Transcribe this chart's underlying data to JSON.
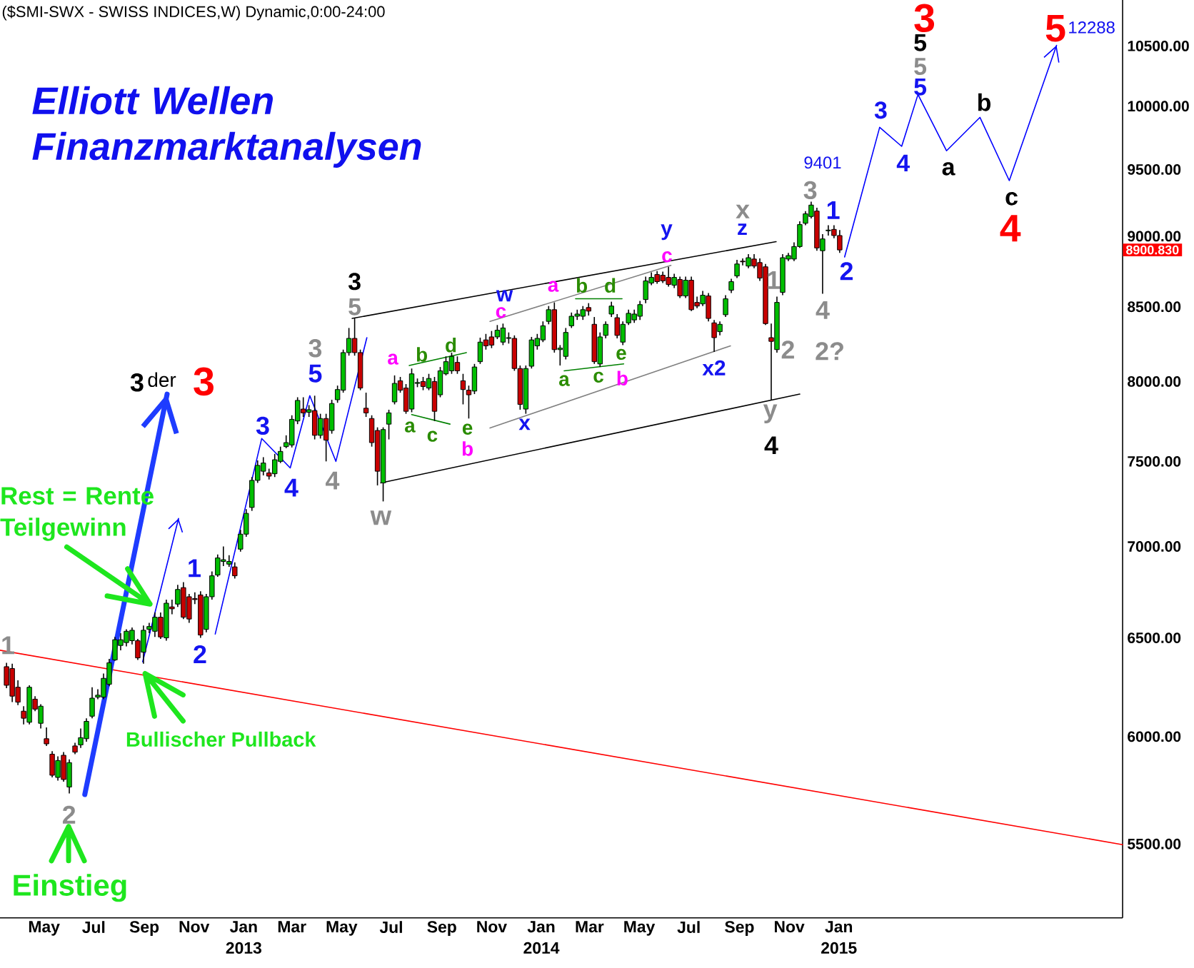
{
  "chart_data": {
    "type": "candlestick",
    "title": "Elliott Wellen Finanzmarktanalysen",
    "subtitle": "($SMI-SWX - SWISS INDICES,W) Dynamic,0:00-24:00",
    "x": [
      "2012-03-16",
      "2012-03-23",
      "2012-03-30",
      "2012-04-06",
      "2012-04-13",
      "2012-04-20",
      "2012-04-27",
      "2012-05-04",
      "2012-05-11",
      "2012-05-18",
      "2012-05-25",
      "2012-06-01",
      "2012-06-08",
      "2012-06-15",
      "2012-06-22",
      "2012-06-29",
      "2012-07-06",
      "2012-07-13",
      "2012-07-20",
      "2012-07-27",
      "2012-08-03",
      "2012-08-10",
      "2012-08-17",
      "2012-08-24",
      "2012-08-31",
      "2012-09-07",
      "2012-09-14",
      "2012-09-21",
      "2012-09-28",
      "2012-10-05",
      "2012-10-12",
      "2012-10-19",
      "2012-10-26",
      "2012-11-02",
      "2012-11-09",
      "2012-11-16",
      "2012-11-23",
      "2012-11-30",
      "2012-12-07",
      "2012-12-14",
      "2012-12-21",
      "2012-12-28",
      "2013-01-04",
      "2013-01-11",
      "2013-01-18",
      "2013-01-25",
      "2013-02-01",
      "2013-02-08",
      "2013-02-15",
      "2013-02-22",
      "2013-03-01",
      "2013-03-08",
      "2013-03-15",
      "2013-03-22",
      "2013-03-29",
      "2013-04-05",
      "2013-04-12",
      "2013-04-19",
      "2013-04-26",
      "2013-05-03",
      "2013-05-10",
      "2013-05-17",
      "2013-05-24",
      "2013-05-31",
      "2013-06-07",
      "2013-06-14",
      "2013-06-21",
      "2013-06-28",
      "2013-07-05",
      "2013-07-12",
      "2013-07-19",
      "2013-07-26",
      "2013-08-02",
      "2013-08-09",
      "2013-08-16",
      "2013-08-23",
      "2013-08-30",
      "2013-09-06",
      "2013-09-13",
      "2013-09-20",
      "2013-09-27",
      "2013-10-04",
      "2013-10-11",
      "2013-10-18",
      "2013-10-25",
      "2013-11-01",
      "2013-11-08",
      "2013-11-15",
      "2013-11-22",
      "2013-11-29",
      "2013-12-06",
      "2013-12-13",
      "2013-12-20",
      "2013-12-27",
      "2014-01-03",
      "2014-01-10",
      "2014-01-17",
      "2014-01-24",
      "2014-01-31",
      "2014-02-07",
      "2014-02-14",
      "2014-02-21",
      "2014-02-28",
      "2014-03-07",
      "2014-03-14",
      "2014-03-21",
      "2014-03-28",
      "2014-04-04",
      "2014-04-11",
      "2014-04-18",
      "2014-04-25",
      "2014-05-02",
      "2014-05-09",
      "2014-05-16",
      "2014-05-23",
      "2014-05-30",
      "2014-06-06",
      "2014-06-13",
      "2014-06-20",
      "2014-06-27",
      "2014-07-04",
      "2014-07-11",
      "2014-07-18",
      "2014-07-25",
      "2014-08-01",
      "2014-08-08",
      "2014-08-15",
      "2014-08-22",
      "2014-08-29",
      "2014-09-05",
      "2014-09-12",
      "2014-09-19",
      "2014-09-26",
      "2014-10-03",
      "2014-10-10",
      "2014-10-17",
      "2014-10-24",
      "2014-10-31",
      "2014-11-07",
      "2014-11-14",
      "2014-11-21",
      "2014-11-28",
      "2014-12-05",
      "2014-12-12",
      "2014-12-19",
      "2014-12-26",
      "2015-01-02"
    ],
    "ohlc": [
      [
        6350,
        6370,
        6240,
        6255
      ],
      [
        6340,
        6365,
        6170,
        6200
      ],
      [
        6245,
        6280,
        6155,
        6170
      ],
      [
        6125,
        6150,
        6060,
        6090
      ],
      [
        6070,
        6255,
        6060,
        6245
      ],
      [
        6185,
        6200,
        6125,
        6135
      ],
      [
        6065,
        6160,
        6040,
        6150
      ],
      [
        5990,
        6045,
        5955,
        5965
      ],
      [
        5915,
        5930,
        5805,
        5815
      ],
      [
        5805,
        5905,
        5790,
        5885
      ],
      [
        5910,
        5925,
        5785,
        5795
      ],
      [
        5760,
        5890,
        5730,
        5875
      ],
      [
        5955,
        5970,
        5915,
        5925
      ],
      [
        5960,
        6040,
        5945,
        5995
      ],
      [
        5990,
        6090,
        5975,
        6075
      ],
      [
        6100,
        6245,
        6090,
        6190
      ],
      [
        6195,
        6235,
        6185,
        6205
      ],
      [
        6195,
        6315,
        6185,
        6290
      ],
      [
        6260,
        6390,
        6250,
        6370
      ],
      [
        6385,
        6505,
        6380,
        6490
      ],
      [
        6460,
        6525,
        6435,
        6490
      ],
      [
        6475,
        6545,
        6455,
        6535
      ],
      [
        6485,
        6555,
        6465,
        6540
      ],
      [
        6485,
        6495,
        6385,
        6395
      ],
      [
        6425,
        6565,
        6365,
        6540
      ],
      [
        6545,
        6580,
        6525,
        6560
      ],
      [
        6535,
        6635,
        6505,
        6610
      ],
      [
        6610,
        6635,
        6495,
        6505
      ],
      [
        6500,
        6705,
        6485,
        6685
      ],
      [
        6665,
        6705,
        6625,
        6655
      ],
      [
        6680,
        6785,
        6665,
        6760
      ],
      [
        6770,
        6800,
        6600,
        6610
      ],
      [
        6720,
        6735,
        6580,
        6600
      ],
      [
        6710,
        6745,
        6680,
        6705
      ],
      [
        6730,
        6750,
        6500,
        6515
      ],
      [
        6545,
        6735,
        6530,
        6720
      ],
      [
        6720,
        6860,
        6705,
        6835
      ],
      [
        6840,
        6955,
        6830,
        6935
      ],
      [
        6915,
        7000,
        6890,
        6925
      ],
      [
        6900,
        6950,
        6885,
        6915
      ],
      [
        6885,
        6910,
        6820,
        6835
      ],
      [
        6985,
        7095,
        6970,
        7070
      ],
      [
        7070,
        7215,
        7055,
        7190
      ],
      [
        7225,
        7405,
        7205,
        7385
      ],
      [
        7385,
        7505,
        7370,
        7475
      ],
      [
        7440,
        7525,
        7415,
        7490
      ],
      [
        7430,
        7455,
        7390,
        7410
      ],
      [
        7425,
        7545,
        7405,
        7510
      ],
      [
        7500,
        7590,
        7490,
        7560
      ],
      [
        7590,
        7660,
        7580,
        7615
      ],
      [
        7600,
        7785,
        7585,
        7760
      ],
      [
        7750,
        7900,
        7730,
        7880
      ],
      [
        7825,
        7900,
        7775,
        7800
      ],
      [
        7805,
        7850,
        7775,
        7820
      ],
      [
        7815,
        7910,
        7635,
        7660
      ],
      [
        7660,
        7795,
        7640,
        7765
      ],
      [
        7765,
        7795,
        7500,
        7630
      ],
      [
        7690,
        7885,
        7670,
        7860
      ],
      [
        7885,
        7975,
        7865,
        7950
      ],
      [
        7945,
        8210,
        7930,
        8190
      ],
      [
        8190,
        8355,
        8170,
        8285
      ],
      [
        8285,
        8420,
        8170,
        8190
      ],
      [
        8190,
        8210,
        7945,
        7960
      ],
      [
        7830,
        7930,
        7775,
        7800
      ],
      [
        7765,
        7785,
        7590,
        7615
      ],
      [
        7690,
        7710,
        7355,
        7440
      ],
      [
        7370,
        7710,
        7260,
        7695
      ],
      [
        7730,
        7820,
        7635,
        7800
      ],
      [
        7870,
        8040,
        7855,
        7990
      ],
      [
        8005,
        8030,
        7930,
        7945
      ],
      [
        7960,
        7985,
        7795,
        7810
      ],
      [
        7825,
        8085,
        7805,
        8050
      ],
      [
        7990,
        8020,
        7965,
        7995
      ],
      [
        8000,
        8030,
        7945,
        7970
      ],
      [
        7960,
        8050,
        7945,
        8020
      ],
      [
        8000,
        8030,
        7750,
        7810
      ],
      [
        7915,
        8095,
        7900,
        8070
      ],
      [
        8050,
        8165,
        8040,
        8130
      ],
      [
        8070,
        8190,
        8050,
        8165
      ],
      [
        8125,
        8165,
        8050,
        8070
      ],
      [
        8005,
        8050,
        7855,
        7950
      ],
      [
        7945,
        7975,
        7765,
        7915
      ],
      [
        7940,
        8115,
        7920,
        8095
      ],
      [
        8130,
        8290,
        8115,
        8260
      ],
      [
        8275,
        8315,
        8210,
        8235
      ],
      [
        8295,
        8335,
        8220,
        8240
      ],
      [
        8295,
        8375,
        8280,
        8340
      ],
      [
        8260,
        8385,
        8240,
        8355
      ],
      [
        8285,
        8325,
        8250,
        8290
      ],
      [
        8285,
        8305,
        8070,
        8085
      ],
      [
        8085,
        8105,
        7820,
        7855
      ],
      [
        7825,
        8105,
        7795,
        8085
      ],
      [
        8100,
        8295,
        8085,
        8275
      ],
      [
        8235,
        8315,
        8210,
        8285
      ],
      [
        8275,
        8400,
        8260,
        8370
      ],
      [
        8400,
        8505,
        8380,
        8480
      ],
      [
        8480,
        8530,
        8190,
        8210
      ],
      [
        8210,
        8240,
        8105,
        8220
      ],
      [
        8165,
        8355,
        8145,
        8325
      ],
      [
        8370,
        8460,
        8355,
        8435
      ],
      [
        8435,
        8480,
        8410,
        8450
      ],
      [
        8435,
        8505,
        8410,
        8480
      ],
      [
        8495,
        8525,
        8440,
        8470
      ],
      [
        8380,
        8430,
        8115,
        8130
      ],
      [
        8115,
        8325,
        8095,
        8295
      ],
      [
        8305,
        8400,
        8285,
        8380
      ],
      [
        8450,
        8535,
        8430,
        8505
      ],
      [
        8425,
        8450,
        8285,
        8305
      ],
      [
        8260,
        8400,
        8240,
        8380
      ],
      [
        8390,
        8480,
        8375,
        8455
      ],
      [
        8410,
        8480,
        8390,
        8450
      ],
      [
        8435,
        8540,
        8410,
        8515
      ],
      [
        8550,
        8710,
        8525,
        8680
      ],
      [
        8665,
        8740,
        8650,
        8705
      ],
      [
        8725,
        8750,
        8660,
        8675
      ],
      [
        8720,
        8745,
        8665,
        8680
      ],
      [
        8705,
        8780,
        8640,
        8655
      ],
      [
        8650,
        8730,
        8630,
        8705
      ],
      [
        8690,
        8710,
        8560,
        8575
      ],
      [
        8575,
        8710,
        8560,
        8685
      ],
      [
        8685,
        8710,
        8470,
        8480
      ],
      [
        8530,
        8570,
        8490,
        8505
      ],
      [
        8520,
        8610,
        8505,
        8580
      ],
      [
        8575,
        8595,
        8400,
        8420
      ],
      [
        8390,
        8410,
        8195,
        8290
      ],
      [
        8330,
        8400,
        8305,
        8380
      ],
      [
        8445,
        8580,
        8430,
        8555
      ],
      [
        8615,
        8695,
        8595,
        8675
      ],
      [
        8715,
        8830,
        8700,
        8800
      ],
      [
        8820,
        8840,
        8790,
        8815
      ],
      [
        8785,
        8870,
        8770,
        8845
      ],
      [
        8835,
        8870,
        8770,
        8785
      ],
      [
        8810,
        8840,
        8680,
        8700
      ],
      [
        8780,
        8800,
        8375,
        8385
      ],
      [
        8290,
        8385,
        7885,
        8265
      ],
      [
        8210,
        8570,
        8190,
        8530
      ],
      [
        8600,
        8870,
        8580,
        8845
      ],
      [
        8835,
        8880,
        8820,
        8860
      ],
      [
        8835,
        8955,
        8820,
        8925
      ],
      [
        8925,
        9110,
        8915,
        9085
      ],
      [
        9095,
        9185,
        9080,
        9165
      ],
      [
        9145,
        9255,
        9130,
        9230
      ],
      [
        9185,
        9210,
        8895,
        8915
      ],
      [
        8895,
        9015,
        8590,
        8980
      ],
      [
        9040,
        9080,
        9005,
        9045
      ],
      [
        9050,
        9080,
        8985,
        9005
      ],
      [
        9005,
        9045,
        8880,
        8900.83
      ]
    ],
    "series": [
      {
        "type": "line",
        "color": "#ff0000",
        "x": [
          "2012-03-08",
          "2015-12-15"
        ],
        "values": [
          6435,
          5497
        ]
      },
      {
        "type": "line",
        "color": "#000000",
        "x": [
          "2013-05-14",
          "2014-10-16"
        ],
        "values": [
          8420,
          8960
        ]
      },
      {
        "type": "line",
        "color": "#000000",
        "x": [
          "2013-06-18",
          "2014-11-14"
        ],
        "values": [
          7370,
          7920
        ]
      },
      {
        "type": "line",
        "color": "#808080",
        "x": [
          "2013-10-30",
          "2014-06-09"
        ],
        "values": [
          8400,
          8790
        ]
      },
      {
        "type": "line",
        "color": "#808080",
        "x": [
          "2013-10-30",
          "2014-08-21"
        ],
        "values": [
          7705,
          8235
        ]
      },
      {
        "type": "line",
        "color": "#008000",
        "x": [
          "2013-07-23",
          "2013-10-01"
        ],
        "values": [
          8105,
          8190
        ]
      },
      {
        "type": "line",
        "color": "#008000",
        "x": [
          "2013-07-26",
          "2013-09-11"
        ],
        "values": [
          7790,
          7730
        ]
      },
      {
        "type": "line",
        "color": "#008000",
        "x": [
          "2014-02-12",
          "2014-04-10"
        ],
        "values": [
          8555,
          8555
        ]
      },
      {
        "type": "line",
        "color": "#008000",
        "x": [
          "2014-01-29",
          "2014-04-12"
        ],
        "values": [
          8070,
          8115
        ]
      },
      {
        "type": "line",
        "color": "#0000ff",
        "x": [
          "2012-08-30",
          "2012-10-13"
        ],
        "values": [
          6375,
          7160
        ]
      },
      {
        "type": "line",
        "color": "#0000ff",
        "x": [
          "2012-11-27",
          "2013-01-23",
          "2013-02-27",
          "2013-03-23",
          "2013-04-24",
          "2013-06-01"
        ],
        "values": [
          6520,
          7640,
          7460,
          7910,
          7500,
          8290
        ]
      },
      {
        "type": "line",
        "color": "#1e3cff",
        "x": [
          "2012-06-20",
          "2012-09-29"
        ],
        "values": [
          5725,
          7920
        ]
      },
      {
        "type": "line",
        "color": "#0000ff",
        "x": [
          "2015-01-08",
          "2015-02-20",
          "2015-03-19",
          "2015-04-08",
          "2015-05-13",
          "2015-06-23",
          "2015-07-29",
          "2015-09-25"
        ],
        "values": [
          8850,
          9830,
          9680,
          10095,
          9645,
          9910,
          9415,
          10505
        ]
      }
    ],
    "xlim": [
      "2012-03-08",
      "2015-12-15"
    ],
    "ylim": [
      5180,
      10900
    ],
    "xticks": [
      {
        "value": "2012-05-01",
        "label": "May"
      },
      {
        "value": "2012-07-01",
        "label": "Jul"
      },
      {
        "value": "2012-09-01",
        "label": "Sep"
      },
      {
        "value": "2012-11-01",
        "label": "Nov"
      },
      {
        "value": "2013-01-01",
        "label": "Jan 2013"
      },
      {
        "value": "2013-03-01",
        "label": "Mar"
      },
      {
        "value": "2013-05-01",
        "label": "May"
      },
      {
        "value": "2013-07-01",
        "label": "Jul"
      },
      {
        "value": "2013-09-01",
        "label": "Sep"
      },
      {
        "value": "2013-11-01",
        "label": "Nov"
      },
      {
        "value": "2014-01-01",
        "label": "Jan 2014"
      },
      {
        "value": "2014-03-01",
        "label": "Mar"
      },
      {
        "value": "2014-05-01",
        "label": "May"
      },
      {
        "value": "2014-07-01",
        "label": "Jul"
      },
      {
        "value": "2014-09-01",
        "label": "Sep"
      },
      {
        "value": "2014-11-01",
        "label": "Nov"
      },
      {
        "value": "2015-01-01",
        "label": "Jan 2015"
      }
    ],
    "yticks": [
      {
        "value": 5500,
        "label": "5500.00"
      },
      {
        "value": 6000,
        "label": "6000.00"
      },
      {
        "value": 6500,
        "label": "6500.00"
      },
      {
        "value": 7000,
        "label": "7000.00"
      },
      {
        "value": 7500,
        "label": "7500.00"
      },
      {
        "value": 8000,
        "label": "8000.00"
      },
      {
        "value": 8500,
        "label": "8500.00"
      },
      {
        "value": 9000,
        "label": "9000.00"
      },
      {
        "value": 9500,
        "label": "9500.00"
      },
      {
        "value": 10000,
        "label": "10000.00"
      },
      {
        "value": 10500,
        "label": "10500.00"
      }
    ],
    "log": true,
    "annotations": [
      "1",
      {
        "text": "Rest = Rente Teilgewinn",
        "x": "2012-09-08",
        "y": 6680
      },
      {
        "text": "Bullischer Pullback",
        "x": "2012-09-02",
        "y": 6315
      },
      "Einstieg",
      "2",
      "3",
      "der",
      "3",
      "1",
      "2",
      "3",
      "4",
      "5",
      "3",
      "4",
      "3",
      "5",
      "w",
      "a",
      "b",
      "d",
      "a",
      "c",
      "e",
      "b",
      "w",
      "c",
      "x",
      "a",
      "b",
      "d",
      "a",
      "c",
      "e",
      "b",
      "y",
      "c",
      "x",
      "z",
      "x2",
      "1",
      "2",
      "y",
      "4",
      "9401",
      "3",
      "1",
      "4",
      "2?",
      "2",
      "3",
      "4",
      "5",
      "5",
      "5",
      "3",
      "a",
      "b",
      "c",
      "4",
      "5",
      "12288",
      "8900.830"
    ]
  }
}
